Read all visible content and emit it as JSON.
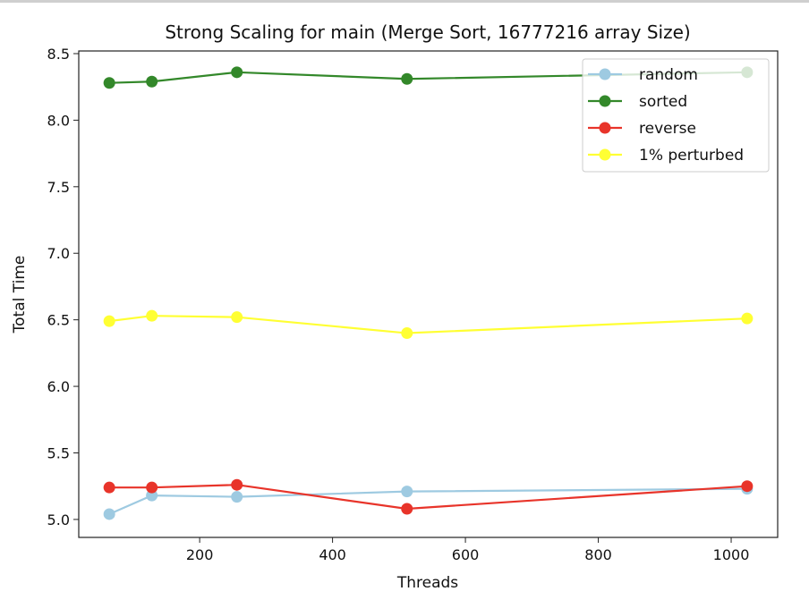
{
  "chart_data": {
    "type": "line",
    "title": "Strong Scaling for main (Merge Sort, 16777216 array Size)",
    "xlabel": "Threads",
    "ylabel": "Total Time",
    "xlim": [
      18,
      1070
    ],
    "ylim": [
      4.865,
      8.52
    ],
    "x": [
      64,
      128,
      256,
      512,
      1024
    ],
    "xticks": [
      200,
      400,
      600,
      800,
      1000
    ],
    "xtick_labels": [
      "200",
      "400",
      "600",
      "800",
      "1000"
    ],
    "yticks": [
      5.0,
      5.5,
      6.0,
      6.5,
      7.0,
      7.5,
      8.0,
      8.5
    ],
    "ytick_labels": [
      "5.0",
      "5.5",
      "6.0",
      "6.5",
      "7.0",
      "7.5",
      "8.0",
      "8.5"
    ],
    "grid": false,
    "legend_position": "top-right",
    "series": [
      {
        "name": "random",
        "color": "#9ecae1",
        "values": [
          5.04,
          5.18,
          5.17,
          5.21,
          5.23
        ]
      },
      {
        "name": "sorted",
        "color": "#33882a",
        "values": [
          8.28,
          8.29,
          8.36,
          8.31,
          8.36
        ]
      },
      {
        "name": "reverse",
        "color": "#e8342a",
        "values": [
          5.24,
          5.24,
          5.26,
          5.08,
          5.25
        ]
      },
      {
        "name": "1% perturbed",
        "color": "#ffff33",
        "values": [
          6.49,
          6.53,
          6.52,
          6.4,
          6.51
        ]
      }
    ]
  }
}
